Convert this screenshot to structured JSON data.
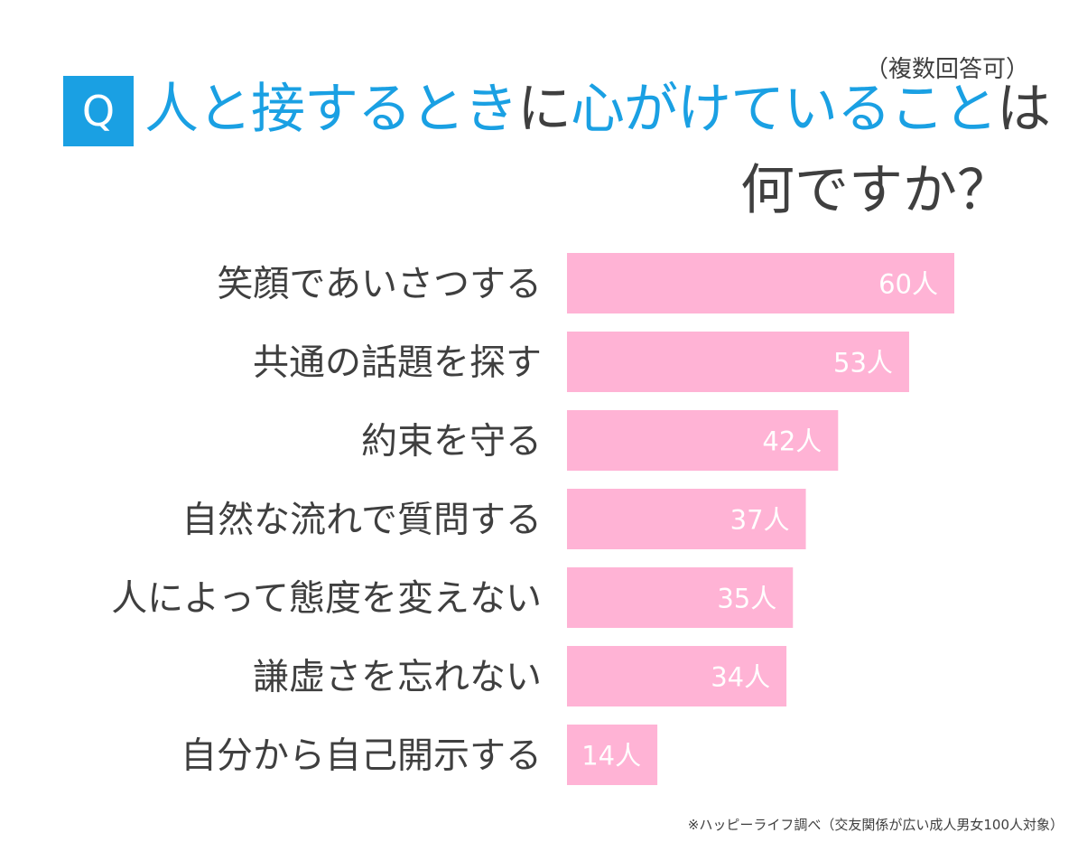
{
  "header": {
    "q_badge": "Q",
    "note": "（複数回答可）",
    "title_line1": [
      {
        "text": "人と接するとき",
        "highlight": true
      },
      {
        "text": "に",
        "highlight": false
      },
      {
        "text": "心がけていること",
        "highlight": true
      },
      {
        "text": "は",
        "highlight": false
      }
    ],
    "title_line2": "何ですか？"
  },
  "colors": {
    "accent": "#1aa0e3",
    "bar": "#ffb3d5",
    "text": "#3f3f3f"
  },
  "chart_data": {
    "type": "bar",
    "orientation": "horizontal",
    "title": "人と接するときに心がけていることは何ですか？",
    "categories": [
      "笑顔であいさつする",
      "共通の話題を探す",
      "約束を守る",
      "自然な流れで質問する",
      "人によって態度を変えない",
      "謙虚さを忘れない",
      "自分から自己開示する"
    ],
    "values": [
      60,
      53,
      42,
      37,
      35,
      34,
      14
    ],
    "value_suffix": "人",
    "xlim": [
      0,
      60
    ],
    "grid": false,
    "legend": "none"
  },
  "source": "※ハッピーライフ調べ（交友関係が広い成人男女100人対象）"
}
